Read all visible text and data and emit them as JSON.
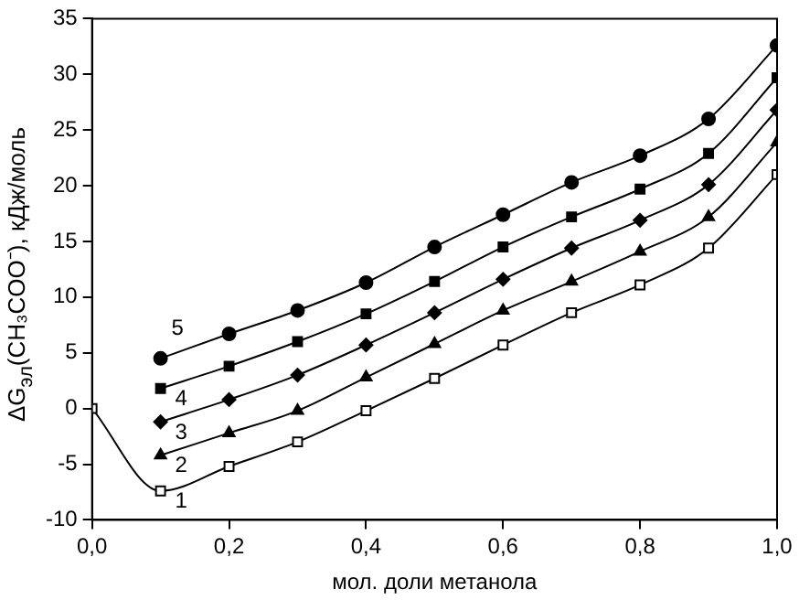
{
  "chart_data": {
    "type": "line",
    "xlabel": "мол. доли метанола",
    "ylabel": "ΔG$_{эл}$(CH₃COO⁻), кДж/моль",
    "x": [
      0,
      0.1,
      0.2,
      0.3,
      0.4,
      0.5,
      0.6,
      0.7,
      0.8,
      0.9,
      1.0
    ],
    "series": [
      {
        "name": "1",
        "color": "#000000",
        "marker": "square",
        "values": [
          0,
          -7.4,
          -5.2,
          -3.0,
          -0.2,
          2.7,
          5.7,
          8.6,
          11.1,
          14.4,
          21.0
        ]
      },
      {
        "name": "2",
        "color": "#000000",
        "marker": "triangle",
        "x": [
          0.1,
          0.2,
          0.3,
          0.4,
          0.5,
          0.6,
          0.7,
          0.8,
          0.9,
          1.0
        ],
        "values": [
          -4.2,
          -2.2,
          -0.2,
          2.8,
          5.8,
          8.8,
          11.4,
          14.1,
          17.2,
          23.9
        ]
      },
      {
        "name": "3",
        "color": "#000000",
        "marker": "diamond",
        "x": [
          0.1,
          0.2,
          0.3,
          0.4,
          0.5,
          0.6,
          0.7,
          0.8,
          0.9,
          1.0
        ],
        "values": [
          -1.2,
          0.8,
          3.0,
          5.7,
          8.6,
          11.6,
          14.4,
          16.9,
          20.1,
          26.8
        ]
      },
      {
        "name": "4",
        "color": "#000000",
        "marker": "square",
        "x": [
          0.1,
          0.2,
          0.3,
          0.4,
          0.5,
          0.6,
          0.7,
          0.8,
          0.9,
          1.0
        ],
        "values": [
          1.8,
          3.8,
          6.0,
          8.5,
          11.4,
          14.5,
          17.2,
          19.7,
          22.9,
          29.7
        ]
      },
      {
        "name": "5",
        "color": "#000000",
        "marker": "circle",
        "x": [
          0.1,
          0.2,
          0.3,
          0.4,
          0.5,
          0.6,
          0.7,
          0.8,
          0.9,
          1.0
        ],
        "values": [
          4.5,
          6.7,
          8.8,
          11.3,
          14.5,
          17.4,
          20.3,
          22.7,
          26.0,
          32.6
        ]
      }
    ],
    "xlim": [
      0,
      1
    ],
    "xticks": [
      {
        "value": 0,
        "label": "0,0"
      },
      {
        "value": 0.2,
        "label": "0,2"
      },
      {
        "value": 0.4,
        "label": "0,4"
      },
      {
        "value": 0.6,
        "label": "0,6"
      },
      {
        "value": 0.8,
        "label": "0,8"
      },
      {
        "value": 1,
        "label": "1,0"
      }
    ],
    "ylim": [
      -10,
      35
    ],
    "yticks": [
      -10,
      -5,
      0,
      5,
      10,
      15,
      20,
      25,
      30,
      35
    ],
    "grid": false,
    "legend": false,
    "line_style": "solid"
  }
}
